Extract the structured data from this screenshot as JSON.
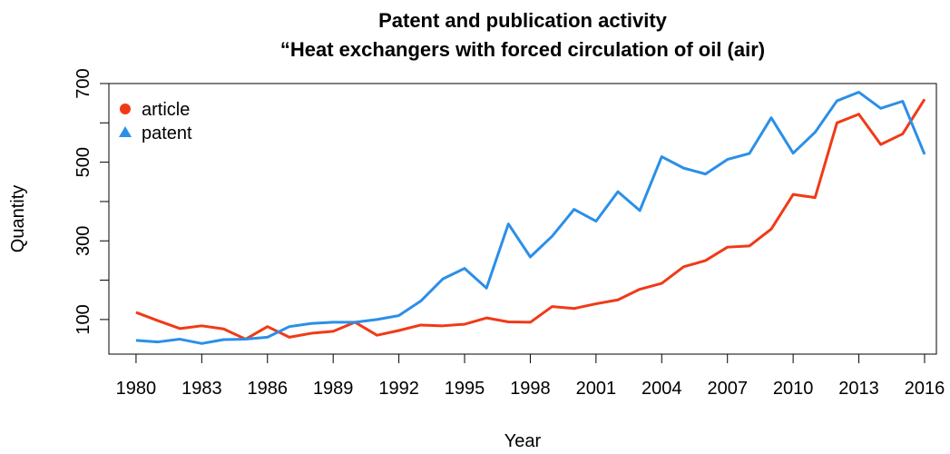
{
  "chart_data": {
    "type": "line",
    "title": "Patent and publication activity",
    "subtitle": "“Heat exchangers with forced circulation of oil (air)",
    "x_label": "Year",
    "y_label": "Quantity",
    "x": [
      1980,
      1981,
      1982,
      1983,
      1984,
      1985,
      1986,
      1987,
      1988,
      1989,
      1990,
      1991,
      1992,
      1993,
      1994,
      1995,
      1996,
      1997,
      1998,
      1999,
      2000,
      2001,
      2002,
      2003,
      2004,
      2005,
      2006,
      2007,
      2008,
      2009,
      2010,
      2011,
      2012,
      2013,
      2014,
      2015,
      2016
    ],
    "series": [
      {
        "name": "article",
        "color": "#f03a17",
        "marker": "circle",
        "values": [
          118,
          97,
          77,
          84,
          76,
          50,
          82,
          55,
          65,
          70,
          93,
          60,
          72,
          86,
          84,
          88,
          104,
          94,
          93,
          133,
          128,
          140,
          150,
          177,
          192,
          234,
          250,
          284,
          287,
          330,
          418,
          410,
          600,
          622,
          545,
          572,
          660
        ]
      },
      {
        "name": "patent",
        "color": "#2b8fe8",
        "marker": "triangle",
        "values": [
          47,
          43,
          50,
          39,
          49,
          50,
          55,
          82,
          90,
          93,
          93,
          100,
          110,
          147,
          203,
          230,
          180,
          343,
          259,
          312,
          380,
          350,
          425,
          377,
          514,
          485,
          470,
          507,
          522,
          613,
          523,
          576,
          656,
          678,
          637,
          655,
          520
        ]
      }
    ],
    "xlim": [
      1978.76,
      2016.54
    ],
    "xticks": [
      1980,
      1983,
      1986,
      1989,
      1992,
      1995,
      1998,
      2001,
      2004,
      2007,
      2010,
      2013,
      2016
    ],
    "ylim": [
      12,
      700
    ],
    "yticks": [
      100,
      300,
      500,
      700
    ],
    "yminor_ticks": [
      200,
      400,
      600
    ],
    "legend": "top-left"
  }
}
